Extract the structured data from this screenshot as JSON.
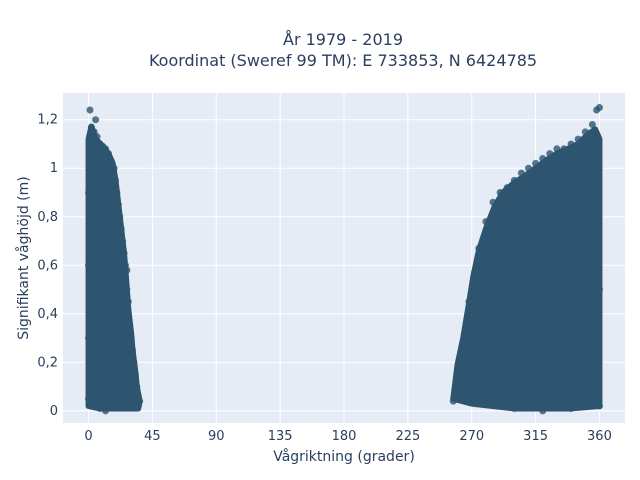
{
  "chart_data": {
    "type": "scatter",
    "title_line1": "År 1979 - 2019",
    "title_line2": "Koordinat (Sweref 99 TM): E 733853, N 6424785",
    "xlabel": "Vågriktning (grader)",
    "ylabel": "Signifikant våghöjd (m)",
    "xlim": [
      -18,
      378
    ],
    "ylim": [
      -0.05,
      1.31
    ],
    "xticks": [
      0,
      45,
      90,
      135,
      180,
      225,
      270,
      315,
      360
    ],
    "xtick_labels": [
      "0",
      "45",
      "90",
      "135",
      "180",
      "225",
      "270",
      "315",
      "360"
    ],
    "yticks": [
      0,
      0.2,
      0.4,
      0.6,
      0.8,
      1.0,
      1.2
    ],
    "ytick_labels": [
      "0",
      "0,2",
      "0,4",
      "0,6",
      "0,8",
      "1",
      "1,2"
    ],
    "grid": true,
    "colors": {
      "marker": "#2e5570",
      "plot_bg": "#e5ecf6",
      "grid": "#ffffff",
      "text": "#2a3f5f"
    },
    "series": [
      {
        "values_description_cluster_north": "dense points between 0 and ~37 degrees",
        "points": [
          [
            1,
            1.24
          ],
          [
            5,
            1.2
          ],
          [
            2,
            1.17
          ],
          [
            4,
            1.15
          ],
          [
            6,
            1.13
          ],
          [
            3,
            1.12
          ],
          [
            8,
            1.1
          ],
          [
            10,
            1.09
          ],
          [
            12,
            1.08
          ],
          [
            14,
            1.06
          ],
          [
            16,
            1.03
          ],
          [
            18,
            1.0
          ],
          [
            19,
            0.95
          ],
          [
            20,
            0.9
          ],
          [
            21,
            0.85
          ],
          [
            22,
            0.8
          ],
          [
            23,
            0.75
          ],
          [
            24,
            0.7
          ],
          [
            25,
            0.65
          ],
          [
            26,
            0.6
          ],
          [
            27,
            0.58
          ],
          [
            26,
            0.55
          ],
          [
            27,
            0.5
          ],
          [
            28,
            0.45
          ],
          [
            28,
            0.4
          ],
          [
            29,
            0.35
          ],
          [
            30,
            0.3
          ],
          [
            31,
            0.25
          ],
          [
            32,
            0.2
          ],
          [
            33,
            0.15
          ],
          [
            34,
            0.1
          ],
          [
            35,
            0.06
          ],
          [
            36,
            0.04
          ],
          [
            35,
            0.02
          ],
          [
            8,
            0.01
          ],
          [
            12,
            0.0
          ],
          [
            0,
            0.05
          ],
          [
            0,
            0.3
          ],
          [
            0,
            0.6
          ],
          [
            0,
            0.9
          ],
          [
            15,
            0.5
          ],
          [
            10,
            0.2
          ],
          [
            20,
            0.4
          ],
          [
            5,
            0.7
          ],
          [
            257,
            0.04
          ],
          [
            262,
            0.19
          ],
          [
            265,
            0.3
          ],
          [
            268,
            0.45
          ],
          [
            272,
            0.57
          ],
          [
            275,
            0.67
          ],
          [
            280,
            0.78
          ],
          [
            285,
            0.86
          ],
          [
            290,
            0.9
          ],
          [
            295,
            0.92
          ],
          [
            300,
            0.95
          ],
          [
            305,
            0.98
          ],
          [
            310,
            1.0
          ],
          [
            315,
            1.02
          ],
          [
            320,
            1.04
          ],
          [
            325,
            1.06
          ],
          [
            330,
            1.08
          ],
          [
            335,
            1.08
          ],
          [
            340,
            1.1
          ],
          [
            345,
            1.12
          ],
          [
            350,
            1.15
          ],
          [
            355,
            1.18
          ],
          [
            358,
            1.24
          ],
          [
            360,
            1.25
          ],
          [
            359,
            1.1
          ],
          [
            357,
            1.0
          ],
          [
            360,
            0.5
          ],
          [
            360,
            0.02
          ],
          [
            300,
            0.01
          ],
          [
            320,
            0.0
          ],
          [
            340,
            0.01
          ],
          [
            280,
            0.03
          ],
          [
            270,
            0.1
          ],
          [
            330,
            0.3
          ],
          [
            310,
            0.6
          ],
          [
            350,
            0.8
          ]
        ]
      }
    ]
  }
}
